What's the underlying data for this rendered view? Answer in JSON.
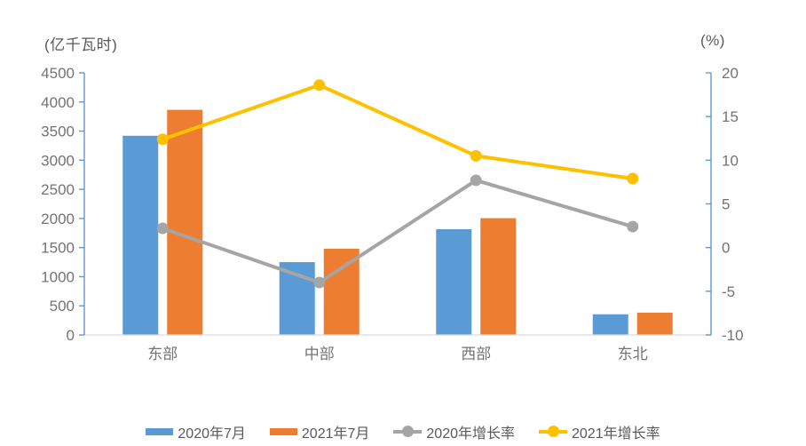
{
  "chart_data": {
    "type": "bar+line combo",
    "categories": [
      "东部",
      "中部",
      "西部",
      "东北"
    ],
    "series": [
      {
        "name": "2020年7月",
        "type": "bar",
        "axis": "left",
        "color": "#5B9BD5",
        "values": [
          3420,
          1250,
          1815,
          355
        ]
      },
      {
        "name": "2021年7月",
        "type": "bar",
        "axis": "left",
        "color": "#ED7D31",
        "values": [
          3865,
          1480,
          2005,
          383
        ]
      },
      {
        "name": "2020年增长率",
        "type": "line",
        "axis": "right",
        "color": "#A5A5A5",
        "values": [
          2.2,
          -4.0,
          7.7,
          2.4
        ]
      },
      {
        "name": "2021年增长率",
        "type": "line",
        "axis": "right",
        "color": "#FFC000",
        "values": [
          12.4,
          18.6,
          10.5,
          7.9
        ]
      }
    ],
    "left_axis": {
      "title": "(亿千瓦时)",
      "min": 0,
      "max": 4500,
      "step": 500
    },
    "right_axis": {
      "title": "(%)",
      "min": -10,
      "max": 20,
      "step": 5
    },
    "grid": false,
    "legend_position": "bottom"
  },
  "style": {
    "axis_line_color": "#5B9BD5",
    "baseline_color": "#D9D9D9",
    "text_color": "#737373",
    "background_color": "#FFFFFF"
  }
}
